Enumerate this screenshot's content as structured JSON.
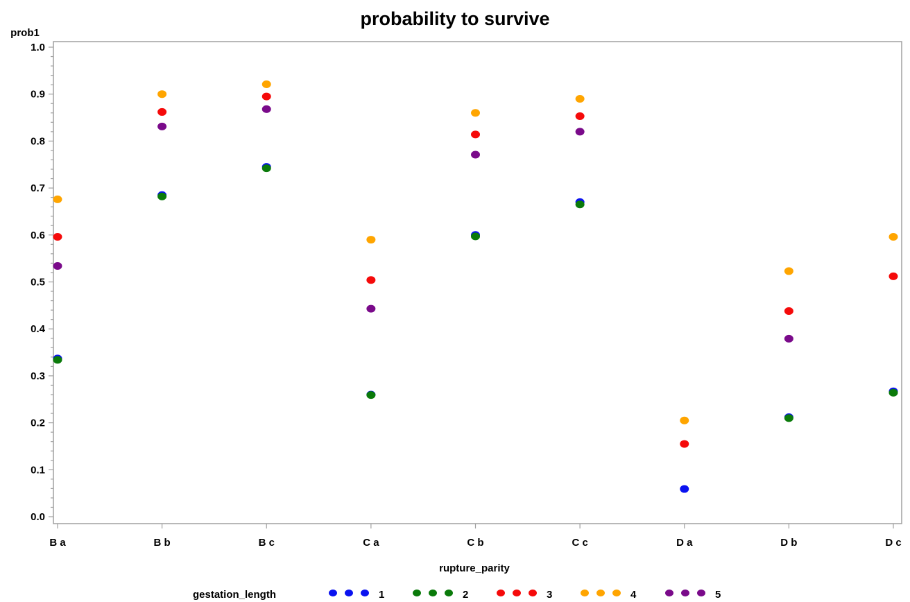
{
  "chart_data": {
    "type": "scatter",
    "title": "probability  to survive",
    "xlabel": "rupture_parity",
    "ylabel": "prob1",
    "categories": [
      "B a",
      "B b",
      "B c",
      "C a",
      "C b",
      "C c",
      "D a",
      "D b",
      "D c"
    ],
    "ylim": [
      0.0,
      1.0
    ],
    "yticks": [
      "0.0",
      "0.1",
      "0.2",
      "0.3",
      "0.4",
      "0.5",
      "0.6",
      "0.7",
      "0.8",
      "0.9",
      "1.0"
    ],
    "grid": false,
    "legend_title": "gestation_length",
    "legend_position": "bottom",
    "series": [
      {
        "name": "1",
        "color": "#0a12f0",
        "values": [
          0.337,
          0.685,
          0.745,
          0.26,
          0.6,
          0.67,
          0.059,
          0.212,
          0.267
        ]
      },
      {
        "name": "2",
        "color": "#0a7a0a",
        "values": [
          0.334,
          0.682,
          0.742,
          0.259,
          0.597,
          0.665,
          null,
          0.21,
          0.264
        ]
      },
      {
        "name": "3",
        "color": "#f50a0a",
        "values": [
          0.596,
          0.862,
          0.895,
          0.504,
          0.814,
          0.853,
          0.155,
          0.438,
          0.512
        ]
      },
      {
        "name": "4",
        "color": "#ffa500",
        "values": [
          0.676,
          0.9,
          0.921,
          0.59,
          0.86,
          0.89,
          0.205,
          0.523,
          0.596
        ]
      },
      {
        "name": "5",
        "color": "#7a0a8a",
        "values": [
          0.534,
          0.831,
          0.868,
          0.443,
          0.771,
          0.82,
          null,
          0.379,
          null
        ]
      }
    ]
  }
}
